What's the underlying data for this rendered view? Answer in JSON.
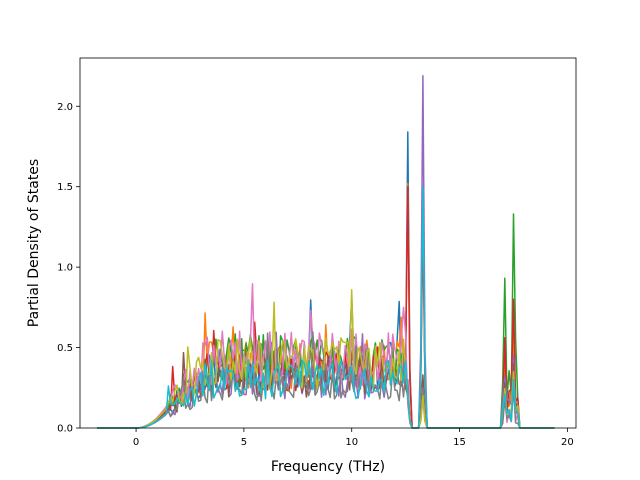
{
  "chart_data": {
    "type": "line",
    "xlabel": "Frequency (THz)",
    "ylabel": "Partial Density of States",
    "xlim": [
      -2.6,
      20.4
    ],
    "ylim": [
      0.0,
      2.3
    ],
    "xticks": [
      0,
      5,
      10,
      15,
      20
    ],
    "yticks": [
      0.0,
      0.5,
      1.0,
      1.5,
      2.0
    ],
    "xtick_labels": [
      "0",
      "5",
      "10",
      "15",
      "20"
    ],
    "ytick_labels": [
      "0.0",
      "0.5",
      "1.0",
      "1.5",
      "2.0"
    ],
    "grid": false,
    "legend": "none",
    "x_range": [
      -1.8,
      19.4
    ],
    "low_band": [
      1.5,
      12.5
    ],
    "peak1_x": 12.6,
    "peak2_x": 13.3,
    "high_band": [
      16.9,
      17.7
    ],
    "series": [
      {
        "color": "#1f77b4",
        "band_level": 0.38,
        "peak1": 1.84,
        "peak2": 1.45,
        "high_peak": 0.55
      },
      {
        "color": "#ff7f0e",
        "band_level": 0.4,
        "peak1": 1.52,
        "peak2": 1.3,
        "high_peak": 0.6
      },
      {
        "color": "#2ca02c",
        "band_level": 0.42,
        "peak1": 0.25,
        "peak2": 0.2,
        "high_peak": 1.33
      },
      {
        "color": "#d62728",
        "band_level": 0.36,
        "peak1": 1.5,
        "peak2": 1.25,
        "high_peak": 0.8
      },
      {
        "color": "#9467bd",
        "band_level": 0.3,
        "peak1": 0.3,
        "peak2": 2.19,
        "high_peak": 0.45
      },
      {
        "color": "#8c564b",
        "band_level": 0.32,
        "peak1": 0.2,
        "peak2": 0.33,
        "high_peak": 0.4
      },
      {
        "color": "#e377c2",
        "band_level": 0.44,
        "peak1": 0.15,
        "peak2": 0.18,
        "high_peak": 0.3
      },
      {
        "color": "#7f7f7f",
        "band_level": 0.28,
        "peak1": 0.18,
        "peak2": 0.25,
        "high_peak": 0.25
      },
      {
        "color": "#bcbd22",
        "band_level": 0.4,
        "peak1": 0.22,
        "peak2": 0.2,
        "high_peak": 0.35
      },
      {
        "color": "#17becf",
        "band_level": 0.3,
        "peak1": 0.2,
        "peak2": 1.5,
        "high_peak": 0.3
      }
    ]
  }
}
